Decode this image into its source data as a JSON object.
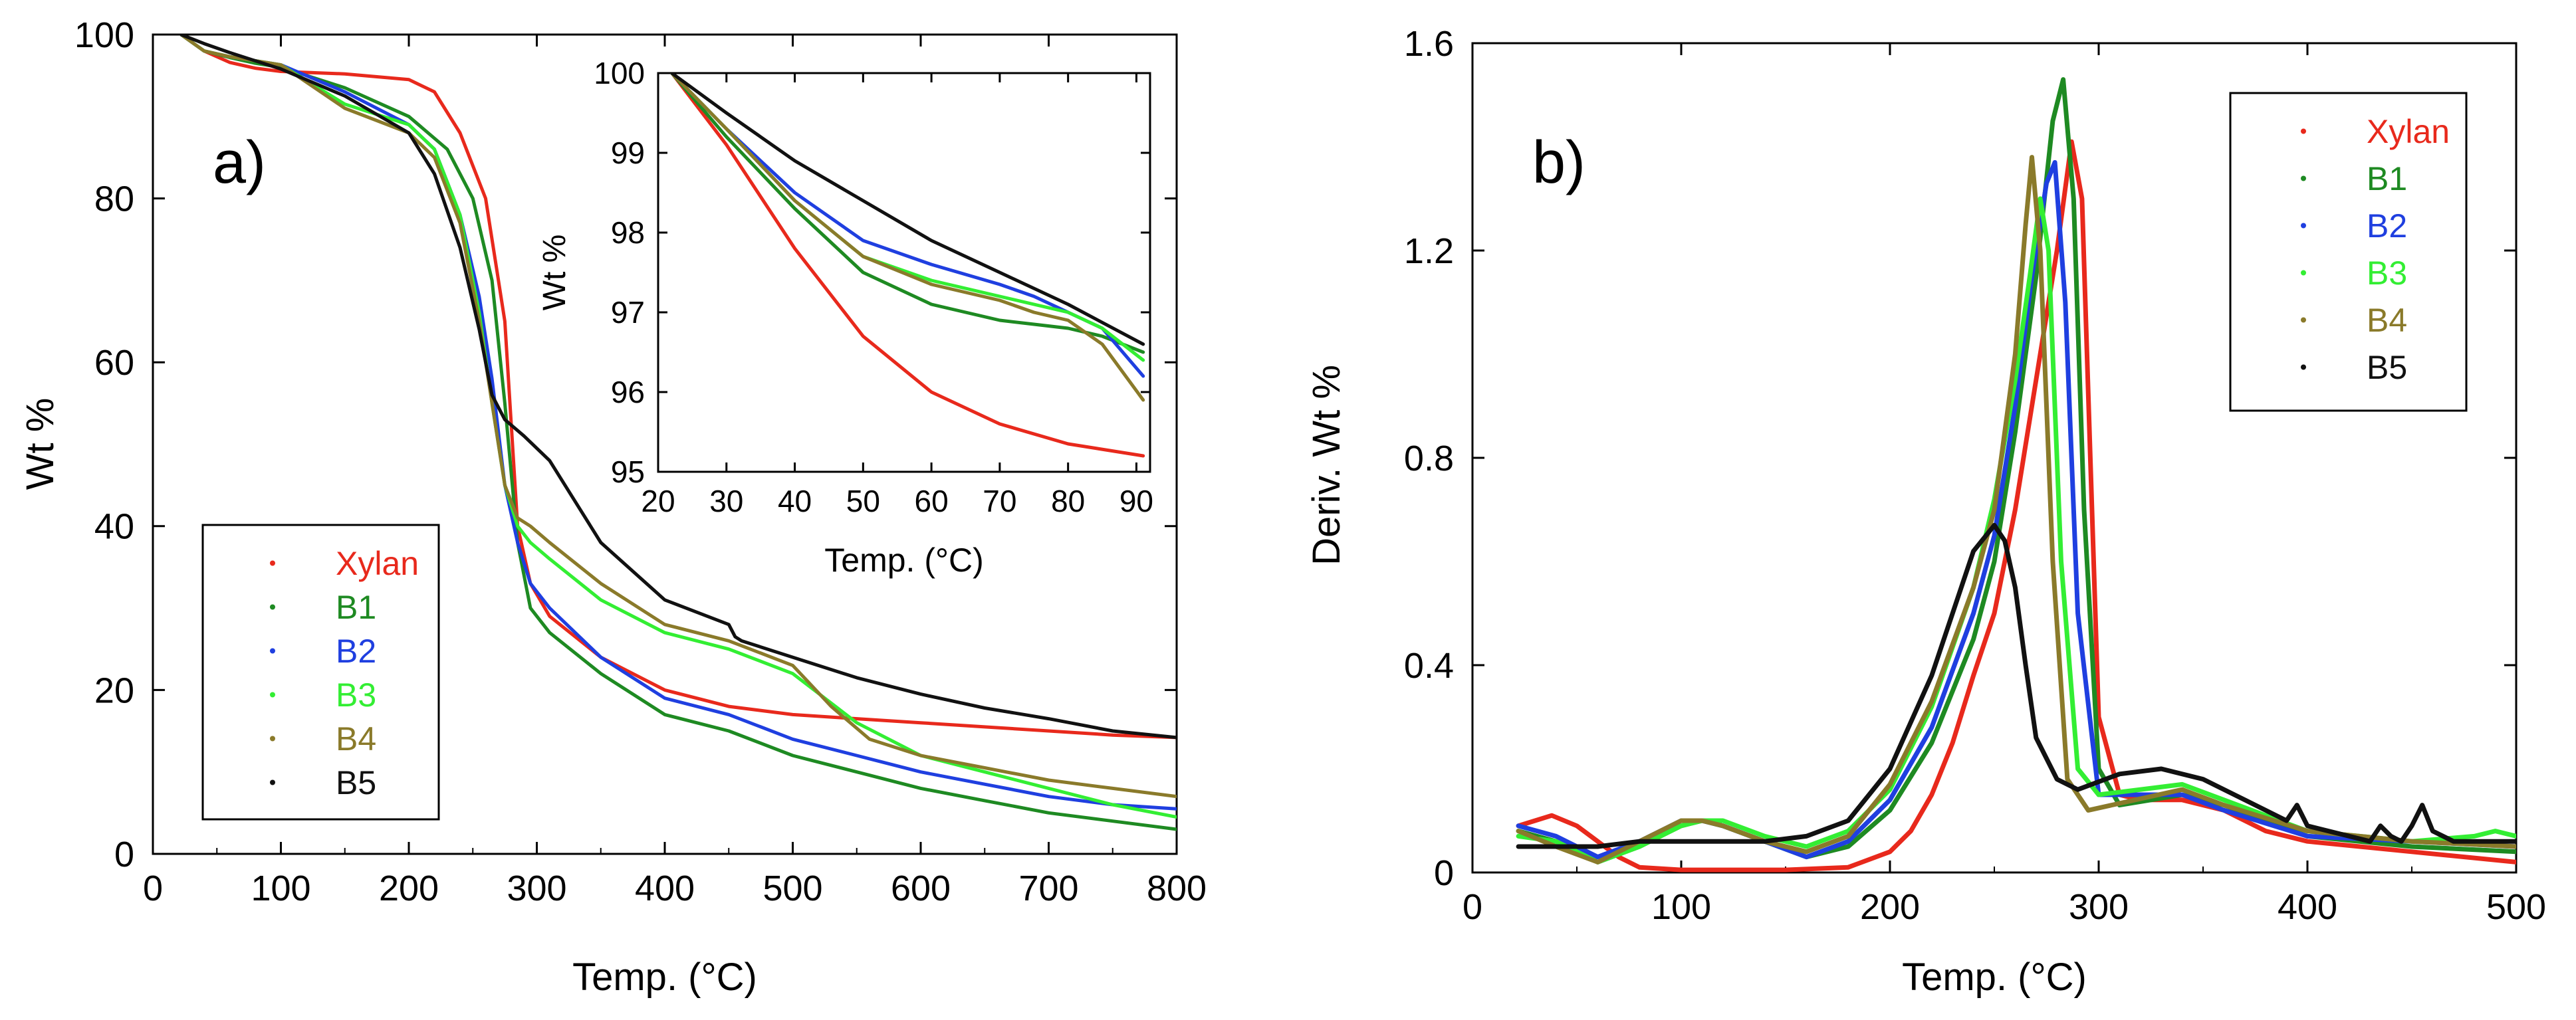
{
  "colors": {
    "Xylan": "#e8291c",
    "B1": "#1e8a22",
    "B2": "#1f3fe0",
    "B3": "#33ee33",
    "B4": "#8a7a2a",
    "B5": "#111111"
  },
  "chart_data": [
    {
      "id": "a",
      "type": "line",
      "panel_label": "a)",
      "xlabel": "Temp. (°C)",
      "ylabel": "Wt %",
      "xlim": [
        0,
        800
      ],
      "ylim": [
        0,
        100
      ],
      "xticks": [
        "0",
        "100",
        "200",
        "300",
        "400",
        "500",
        "600",
        "700",
        "800"
      ],
      "yticks": [
        "0",
        "20",
        "40",
        "60",
        "80",
        "100"
      ],
      "legend": [
        "Xylan",
        "B1",
        "B2",
        "B3",
        "B4",
        "B5"
      ],
      "series": [
        {
          "name": "Xylan",
          "x": [
            22,
            40,
            60,
            80,
            100,
            150,
            200,
            220,
            240,
            260,
            275,
            285,
            295,
            310,
            350,
            400,
            450,
            500,
            550,
            600,
            650,
            700,
            750,
            800
          ],
          "y": [
            100,
            98,
            96.6,
            95.9,
            95.5,
            95.2,
            94.5,
            93,
            88,
            80,
            65,
            40,
            33,
            29,
            24,
            20,
            18,
            17,
            16.5,
            16,
            15.5,
            15,
            14.5,
            14.2
          ]
        },
        {
          "name": "B1",
          "x": [
            22,
            40,
            60,
            80,
            100,
            150,
            200,
            230,
            250,
            265,
            275,
            285,
            295,
            310,
            350,
            400,
            450,
            500,
            550,
            600,
            650,
            700,
            750,
            800
          ],
          "y": [
            100,
            98,
            97.2,
            96.5,
            96,
            93.5,
            90,
            86,
            80,
            70,
            55,
            38,
            30,
            27,
            22,
            17,
            15,
            12,
            10,
            8,
            6.5,
            5,
            4,
            3
          ]
        },
        {
          "name": "B2",
          "x": [
            22,
            40,
            60,
            80,
            100,
            150,
            200,
            220,
            240,
            255,
            265,
            275,
            285,
            295,
            310,
            350,
            400,
            450,
            500,
            550,
            600,
            650,
            700,
            750,
            800
          ],
          "y": [
            100,
            98,
            97.3,
            96.8,
            96.3,
            93,
            89,
            86,
            78,
            68,
            58,
            45,
            38,
            33,
            30,
            24,
            19,
            17,
            14,
            12,
            10,
            8.5,
            7,
            6,
            5.5
          ]
        },
        {
          "name": "B3",
          "x": [
            22,
            40,
            60,
            80,
            100,
            150,
            200,
            220,
            240,
            255,
            265,
            275,
            285,
            295,
            310,
            350,
            400,
            450,
            500,
            550,
            600,
            650,
            700,
            750,
            800
          ],
          "y": [
            100,
            98,
            97.3,
            96.8,
            96.3,
            91.5,
            89,
            86,
            78,
            66,
            55,
            45,
            40,
            38,
            36,
            31,
            27,
            25,
            22,
            16,
            12,
            10,
            8,
            6,
            4.5
          ]
        },
        {
          "name": "B4",
          "x": [
            22,
            40,
            60,
            80,
            100,
            150,
            200,
            220,
            240,
            255,
            265,
            275,
            285,
            295,
            310,
            350,
            400,
            450,
            500,
            530,
            560,
            600,
            650,
            700,
            750,
            800
          ],
          "y": [
            100,
            98,
            97.3,
            96.8,
            96.3,
            91,
            88,
            85,
            77,
            65,
            55,
            45,
            41,
            40,
            38,
            33,
            28,
            26,
            23,
            18,
            14,
            12,
            10.5,
            9,
            8,
            7
          ]
        },
        {
          "name": "B5",
          "x": [
            22,
            40,
            60,
            80,
            100,
            150,
            200,
            220,
            240,
            255,
            265,
            275,
            290,
            310,
            350,
            400,
            450,
            455,
            460,
            500,
            550,
            600,
            650,
            700,
            750,
            800
          ],
          "y": [
            100,
            98.9,
            97.8,
            96.8,
            95.8,
            92.5,
            88,
            83,
            74,
            64,
            56,
            53,
            51,
            48,
            38,
            31,
            28,
            26.5,
            26,
            24,
            21.5,
            19.5,
            17.8,
            16.5,
            15,
            14.2
          ]
        }
      ]
    },
    {
      "id": "a_inset",
      "type": "line",
      "xlabel": "Temp. (°C)",
      "ylabel": "Wt %",
      "xlim": [
        20,
        92
      ],
      "ylim": [
        95,
        100
      ],
      "xticks": [
        "20",
        "30",
        "40",
        "50",
        "60",
        "70",
        "80",
        "90"
      ],
      "yticks": [
        "95",
        "96",
        "97",
        "98",
        "99",
        "100"
      ],
      "series": [
        {
          "name": "Xylan",
          "x": [
            22,
            30,
            40,
            50,
            60,
            70,
            80,
            91
          ],
          "y": [
            100,
            99.1,
            97.8,
            96.7,
            96,
            95.6,
            95.35,
            95.2
          ]
        },
        {
          "name": "B1",
          "x": [
            22,
            30,
            40,
            50,
            60,
            70,
            75,
            80,
            85,
            91
          ],
          "y": [
            100,
            99.2,
            98.3,
            97.5,
            97.1,
            96.9,
            96.85,
            96.8,
            96.7,
            96.5
          ]
        },
        {
          "name": "B2",
          "x": [
            22,
            30,
            40,
            50,
            60,
            70,
            75,
            80,
            85,
            91
          ],
          "y": [
            100,
            99.3,
            98.5,
            97.9,
            97.6,
            97.35,
            97.2,
            97,
            96.8,
            96.2
          ]
        },
        {
          "name": "B3",
          "x": [
            22,
            30,
            40,
            50,
            60,
            70,
            80,
            85,
            91
          ],
          "y": [
            100,
            99.3,
            98.4,
            97.7,
            97.4,
            97.2,
            97.0,
            96.8,
            96.4
          ]
        },
        {
          "name": "B4",
          "x": [
            22,
            30,
            40,
            50,
            60,
            70,
            75,
            80,
            85,
            91
          ],
          "y": [
            100,
            99.3,
            98.4,
            97.7,
            97.35,
            97.15,
            97,
            96.9,
            96.6,
            95.9
          ]
        },
        {
          "name": "B5",
          "x": [
            22,
            30,
            40,
            50,
            60,
            70,
            80,
            91
          ],
          "y": [
            100,
            99.5,
            98.9,
            98.4,
            97.9,
            97.5,
            97.1,
            96.6
          ]
        }
      ]
    },
    {
      "id": "b",
      "type": "line",
      "panel_label": "b)",
      "xlabel": "Temp. (°C)",
      "ylabel": "Deriv. Wt %",
      "xlim": [
        0,
        500
      ],
      "ylim": [
        0,
        1.6
      ],
      "xticks": [
        "0",
        "100",
        "200",
        "300",
        "400",
        "500"
      ],
      "yticks": [
        "0",
        "0.4",
        "0.8",
        "1.2",
        "1.6"
      ],
      "legend": [
        "Xylan",
        "B1",
        "B2",
        "B3",
        "B4",
        "B5"
      ],
      "series": [
        {
          "name": "Xylan",
          "x": [
            22,
            30,
            38,
            50,
            60,
            70,
            80,
            100,
            150,
            180,
            200,
            210,
            220,
            230,
            240,
            250,
            260,
            270,
            280,
            287,
            292,
            296,
            300,
            310,
            320,
            340,
            360,
            380,
            400,
            450,
            500
          ],
          "y": [
            0.09,
            0.1,
            0.11,
            0.09,
            0.06,
            0.03,
            0.01,
            0.005,
            0.005,
            0.01,
            0.04,
            0.08,
            0.15,
            0.25,
            0.38,
            0.5,
            0.7,
            0.95,
            1.2,
            1.41,
            1.3,
            0.8,
            0.3,
            0.15,
            0.14,
            0.14,
            0.12,
            0.08,
            0.06,
            0.04,
            0.02
          ]
        },
        {
          "name": "B1",
          "x": [
            22,
            40,
            60,
            80,
            100,
            110,
            120,
            140,
            160,
            180,
            200,
            220,
            240,
            250,
            260,
            270,
            278,
            283,
            288,
            293,
            300,
            310,
            340,
            360,
            400,
            450,
            500
          ],
          "y": [
            0.08,
            0.06,
            0.02,
            0.05,
            0.09,
            0.1,
            0.09,
            0.06,
            0.03,
            0.05,
            0.12,
            0.25,
            0.45,
            0.6,
            0.85,
            1.15,
            1.45,
            1.53,
            1.3,
            0.7,
            0.2,
            0.13,
            0.15,
            0.13,
            0.07,
            0.05,
            0.04
          ]
        },
        {
          "name": "B2",
          "x": [
            22,
            40,
            60,
            80,
            100,
            110,
            120,
            140,
            160,
            180,
            200,
            220,
            240,
            250,
            260,
            268,
            275,
            279,
            284,
            290,
            300,
            340,
            360,
            400,
            450,
            500
          ],
          "y": [
            0.09,
            0.07,
            0.03,
            0.06,
            0.1,
            0.1,
            0.09,
            0.06,
            0.03,
            0.06,
            0.14,
            0.28,
            0.5,
            0.65,
            0.9,
            1.15,
            1.33,
            1.37,
            1.1,
            0.5,
            0.15,
            0.15,
            0.12,
            0.07,
            0.06,
            0.05
          ]
        },
        {
          "name": "B3",
          "x": [
            22,
            40,
            60,
            80,
            100,
            110,
            120,
            140,
            160,
            180,
            200,
            220,
            240,
            250,
            260,
            267,
            272,
            276,
            282,
            290,
            300,
            340,
            360,
            400,
            450,
            480,
            490,
            500
          ],
          "y": [
            0.07,
            0.06,
            0.02,
            0.05,
            0.09,
            0.1,
            0.1,
            0.07,
            0.05,
            0.08,
            0.16,
            0.32,
            0.55,
            0.72,
            0.95,
            1.15,
            1.3,
            1.2,
            0.6,
            0.2,
            0.15,
            0.17,
            0.14,
            0.08,
            0.06,
            0.07,
            0.08,
            0.07
          ]
        },
        {
          "name": "B4",
          "x": [
            22,
            40,
            60,
            80,
            100,
            110,
            120,
            140,
            160,
            180,
            200,
            220,
            240,
            250,
            260,
            265,
            268,
            272,
            278,
            285,
            295,
            340,
            360,
            400,
            450,
            500
          ],
          "y": [
            0.08,
            0.05,
            0.02,
            0.06,
            0.1,
            0.1,
            0.09,
            0.06,
            0.04,
            0.07,
            0.17,
            0.33,
            0.55,
            0.7,
            1.0,
            1.25,
            1.38,
            1.2,
            0.6,
            0.18,
            0.12,
            0.16,
            0.13,
            0.08,
            0.06,
            0.05
          ]
        },
        {
          "name": "B5",
          "x": [
            22,
            60,
            80,
            100,
            120,
            140,
            160,
            180,
            200,
            220,
            230,
            240,
            250,
            255,
            260,
            265,
            270,
            280,
            290,
            310,
            330,
            350,
            370,
            390,
            395,
            400,
            420,
            430,
            435,
            440,
            445,
            450,
            455,
            460,
            470,
            480,
            500
          ],
          "y": [
            0.05,
            0.05,
            0.06,
            0.06,
            0.06,
            0.06,
            0.07,
            0.1,
            0.2,
            0.38,
            0.5,
            0.62,
            0.67,
            0.64,
            0.55,
            0.4,
            0.26,
            0.18,
            0.16,
            0.19,
            0.2,
            0.18,
            0.14,
            0.1,
            0.13,
            0.09,
            0.07,
            0.06,
            0.09,
            0.07,
            0.06,
            0.09,
            0.13,
            0.08,
            0.06,
            0.06,
            0.06
          ]
        }
      ]
    }
  ]
}
